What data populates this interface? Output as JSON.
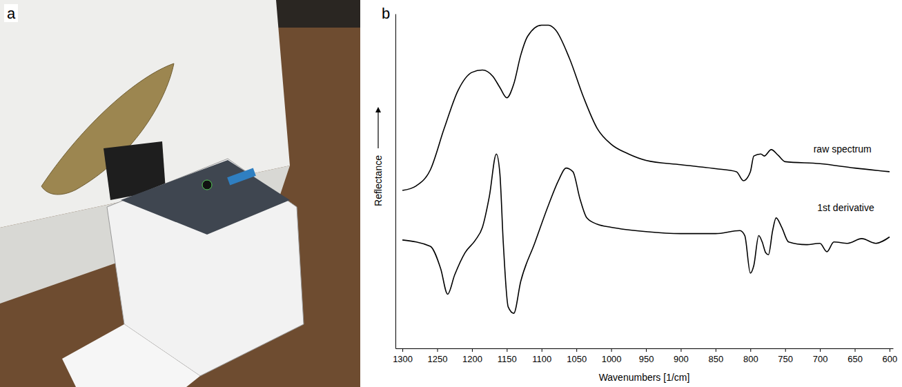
{
  "panel_labels": [
    "a",
    "b"
  ],
  "chart_data": {
    "type": "line",
    "x_label": "Wavenumbers [1/cm]",
    "y_label": "Reflectance",
    "xlim": [
      1310,
      595
    ],
    "xticks": [
      1300,
      1250,
      1200,
      1150,
      1100,
      1050,
      1000,
      950,
      900,
      850,
      800,
      750,
      700,
      650,
      600
    ],
    "ylim": [
      0,
      100
    ],
    "tick_labels": "x",
    "grid": false,
    "series": [
      {
        "name": "raw spectrum",
        "color": "#000000",
        "x": [
          1300,
          1280,
          1260,
          1240,
          1220,
          1200,
          1185,
          1170,
          1160,
          1150,
          1140,
          1130,
          1120,
          1100,
          1090,
          1080,
          1060,
          1040,
          1020,
          1000,
          975,
          950,
          900,
          850,
          820,
          810,
          800,
          795,
          785,
          780,
          770,
          760,
          750,
          700,
          650,
          600
        ],
        "values": [
          47.2,
          48.6,
          53.3,
          65.7,
          77.1,
          82.5,
          83.2,
          81.3,
          78,
          74.9,
          79,
          87.6,
          93.3,
          96.6,
          96.6,
          95.2,
          86.7,
          75.2,
          65.7,
          61,
          58.1,
          56.2,
          54.9,
          53.7,
          52.8,
          50.1,
          52.8,
          57.5,
          58.1,
          57.5,
          59.4,
          57.7,
          55.8,
          55.2,
          53.9,
          52.8
        ]
      },
      {
        "name": "1st derivative",
        "color": "#000000",
        "x": [
          1300,
          1260,
          1245,
          1235,
          1225,
          1210,
          1195,
          1185,
          1175,
          1165,
          1160,
          1155,
          1148,
          1140,
          1130,
          1110,
          1090,
          1075,
          1065,
          1055,
          1045,
          1035,
          1020,
          1000,
          950,
          900,
          850,
          815,
          808,
          800,
          795,
          788,
          783,
          778,
          774,
          768,
          763,
          755,
          745,
          720,
          700,
          690,
          680,
          660,
          640,
          620,
          600
        ],
        "values": [
          32.4,
          30.5,
          23.8,
          16.2,
          21.9,
          28.6,
          32.4,
          36.2,
          45.5,
          58.1,
          52.4,
          31.4,
          12.4,
          10.5,
          20,
          31.4,
          42.9,
          50.5,
          53.9,
          52.8,
          44.8,
          39,
          37.1,
          36.2,
          34.9,
          34.3,
          34.3,
          35.2,
          33.7,
          22.5,
          24.8,
          33.7,
          31.8,
          28.6,
          28,
          35.2,
          39,
          36.2,
          31.8,
          31,
          31.4,
          28.9,
          31.8,
          31.4,
          32.8,
          31.4,
          33.3
        ]
      }
    ],
    "annotations": [
      {
        "text": "raw spectrum",
        "x": 626,
        "y": 58.5
      },
      {
        "text": "1st derivative",
        "x": 622,
        "y": 41
      }
    ]
  }
}
